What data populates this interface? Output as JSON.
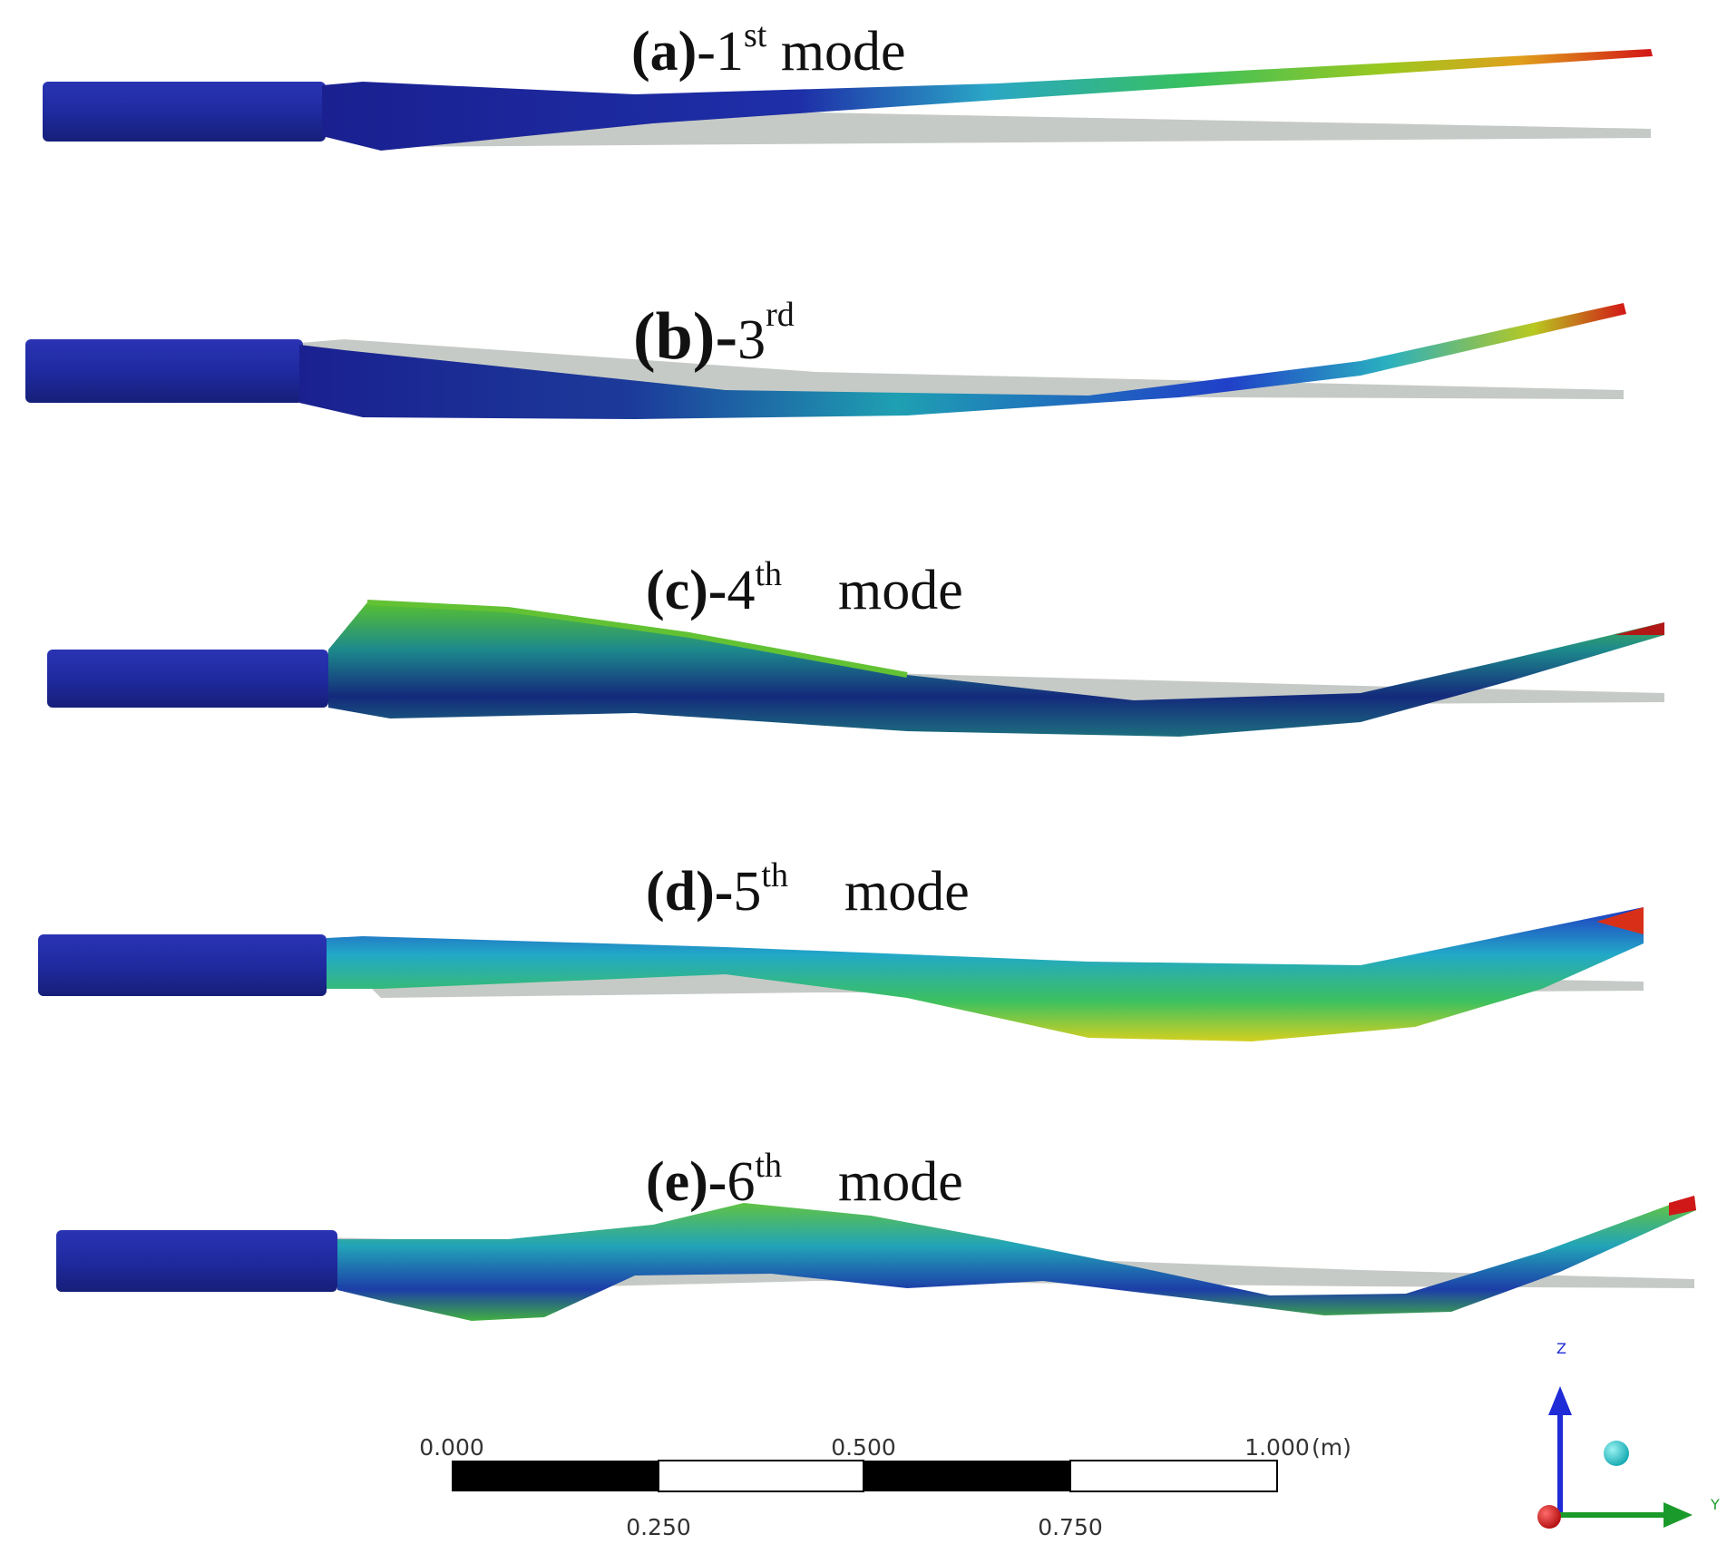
{
  "modes": [
    {
      "id": "a",
      "prefix": "(a)",
      "number": "-1",
      "suffix": "st",
      "tail": " mode",
      "bold_prefix": true
    },
    {
      "id": "b",
      "prefix": "(b)-",
      "number": "3",
      "suffix": "rd",
      "tail": "",
      "bold_prefix": true
    },
    {
      "id": "c",
      "prefix": "(c)-",
      "number": "4",
      "suffix": "th",
      "tail": "    mode",
      "bold_prefix": true
    },
    {
      "id": "d",
      "prefix": "(d)-",
      "number": "5",
      "suffix": "th",
      "tail": "    mode",
      "bold_prefix": true
    },
    {
      "id": "e",
      "prefix": "(e)-",
      "number": "6",
      "suffix": "th",
      "tail": "    mode",
      "bold_prefix": true
    }
  ],
  "scale_bar": {
    "top_ticks": [
      "0.000",
      "0.500",
      "1.000"
    ],
    "unit": "(m)",
    "bottom_ticks": [
      "0.250",
      "0.750"
    ]
  },
  "triad": {
    "z_label": "Z",
    "y_label": "Y",
    "colors": {
      "z": "#1f2bd6",
      "y": "#1a9a2a",
      "origin": "#cc1111",
      "iso": "#19c4c4"
    }
  },
  "colors": {
    "blue_dark": "#1a2a9a",
    "blue": "#2440c8",
    "cyan": "#22b0c0",
    "green": "#39c048",
    "yellow": "#d8d820",
    "orange": "#e08a20",
    "red": "#d01818",
    "undeformed": "#c8ccc8"
  }
}
